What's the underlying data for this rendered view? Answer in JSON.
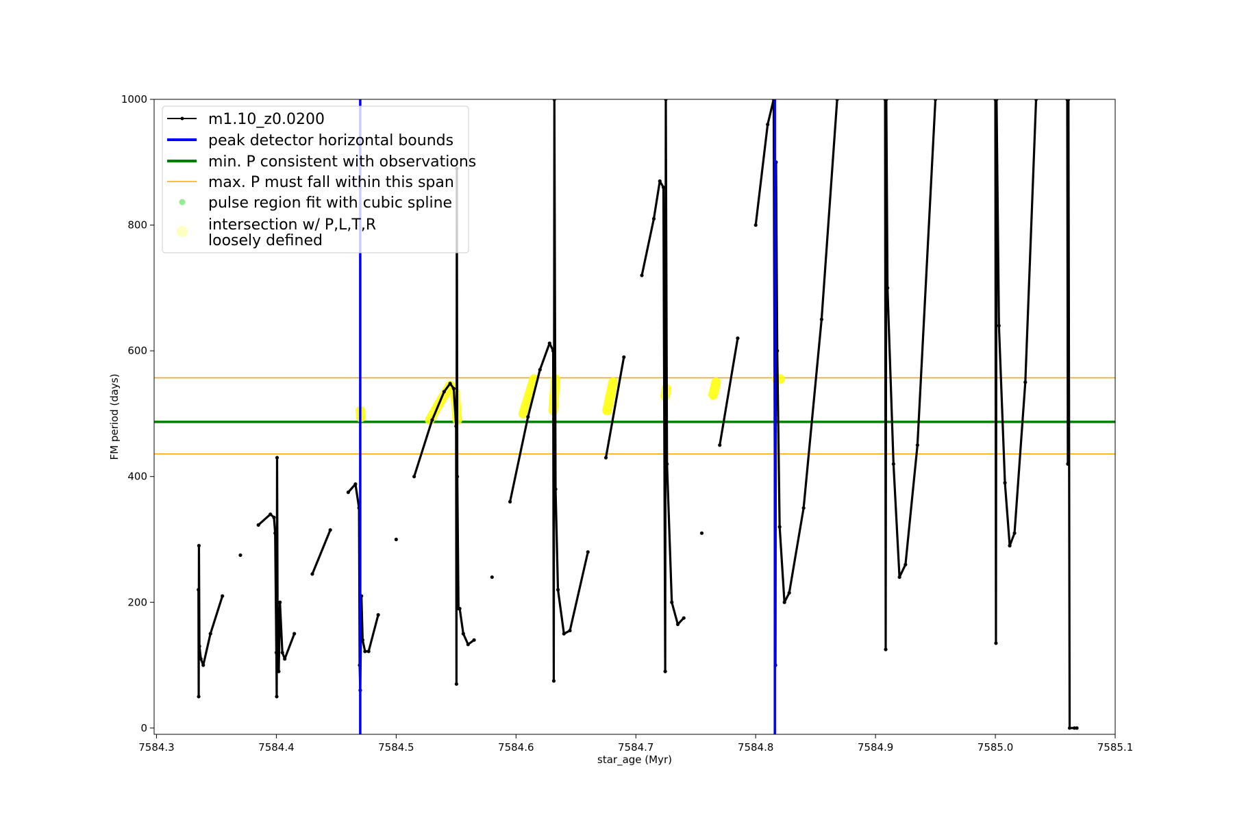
{
  "chart_data": {
    "type": "line",
    "title": "",
    "xlabel": "star_age (Myr)",
    "ylabel": "FM period (days)",
    "xlim": [
      7584.298,
      7585.1
    ],
    "ylim": [
      -10,
      1000
    ],
    "x_ticks": [
      {
        "value": 7584.3,
        "label": "7584.3"
      },
      {
        "value": 7584.4,
        "label": "7584.4"
      },
      {
        "value": 7584.5,
        "label": "7584.5"
      },
      {
        "value": 7584.6,
        "label": "7584.6"
      },
      {
        "value": 7584.7,
        "label": "7584.7"
      },
      {
        "value": 7584.8,
        "label": "7584.8"
      },
      {
        "value": 7584.9,
        "label": "7584.9"
      },
      {
        "value": 7585.0,
        "label": "7585.0"
      },
      {
        "value": 7585.1,
        "label": "7585.1"
      }
    ],
    "y_ticks": [
      {
        "value": 0,
        "label": "0"
      },
      {
        "value": 200,
        "label": "200"
      },
      {
        "value": 400,
        "label": "400"
      },
      {
        "value": 600,
        "label": "600"
      },
      {
        "value": 800,
        "label": "800"
      },
      {
        "value": 1000,
        "label": "1000"
      }
    ],
    "grid": false,
    "legend_position": "top-left",
    "colors": {
      "track": "#000000",
      "bounds": "#0000ff",
      "min_p": "#008000",
      "max_p": "#ffa500",
      "spline": "#90ee90",
      "intersection": "#ffff00"
    },
    "legend": [
      {
        "label": "m1.10_z0.0200",
        "style": "line-marker",
        "color": "#000000"
      },
      {
        "label": "peak detector horizontal bounds",
        "style": "line",
        "color": "#0000ff"
      },
      {
        "label": "min. P consistent with observations",
        "style": "line",
        "color": "#008000"
      },
      {
        "label": "max. P must fall within this span",
        "style": "thin-line",
        "color": "#ffa500"
      },
      {
        "label": "pulse region fit with cubic spline",
        "style": "dot",
        "color": "#90ee90"
      },
      {
        "label": "intersection w/ P,L,T,R\nloosely defined",
        "style": "big-dot",
        "color": "#ffff00"
      }
    ],
    "reference_lines": {
      "vertical_bounds": [
        7584.47,
        7584.816
      ],
      "min_p": 487,
      "max_p_span": [
        436,
        557
      ]
    },
    "series": [
      {
        "name": "m1.10_z0.0200",
        "points": [
          [
            7584.335,
            220
          ],
          [
            7584.3352,
            50
          ],
          [
            7584.3354,
            290
          ],
          [
            7584.3358,
            130
          ],
          [
            7584.337,
            110
          ],
          [
            7584.339,
            100
          ],
          [
            7584.345,
            150
          ],
          [
            7584.355,
            210
          ],
          [
            7584.37,
            275
          ],
          [
            7584.385,
            323
          ],
          [
            7584.395,
            340
          ],
          [
            7584.398,
            335
          ],
          [
            7584.399,
            310
          ],
          [
            7584.4,
            120
          ],
          [
            7584.4003,
            50
          ],
          [
            7584.4006,
            430
          ],
          [
            7584.401,
            200
          ],
          [
            7584.402,
            90
          ],
          [
            7584.403,
            200
          ],
          [
            7584.405,
            120
          ],
          [
            7584.407,
            110
          ],
          [
            7584.415,
            150
          ],
          [
            7584.43,
            245
          ],
          [
            7584.445,
            315
          ],
          [
            7584.46,
            375
          ],
          [
            7584.466,
            388
          ],
          [
            7584.469,
            350
          ],
          [
            7584.4695,
            100
          ],
          [
            7584.47,
            60
          ],
          [
            7584.471,
            210
          ],
          [
            7584.472,
            140
          ],
          [
            7584.474,
            122
          ],
          [
            7584.477,
            122
          ],
          [
            7584.485,
            180
          ],
          [
            7584.5,
            300
          ],
          [
            7584.515,
            400
          ],
          [
            7584.53,
            490
          ],
          [
            7584.54,
            535
          ],
          [
            7584.545,
            548
          ],
          [
            7584.548,
            540
          ],
          [
            7584.55,
            480
          ],
          [
            7584.5503,
            70
          ],
          [
            7584.5506,
            890
          ],
          [
            7584.551,
            400
          ],
          [
            7584.552,
            190
          ],
          [
            7584.553,
            190
          ],
          [
            7584.556,
            150
          ],
          [
            7584.56,
            133
          ],
          [
            7584.565,
            140
          ],
          [
            7584.58,
            240
          ],
          [
            7584.595,
            360
          ],
          [
            7584.61,
            495
          ],
          [
            7584.62,
            570
          ],
          [
            7584.628,
            612
          ],
          [
            7584.631,
            600
          ],
          [
            7584.6315,
            75
          ],
          [
            7584.632,
            1000
          ],
          [
            7584.633,
            380
          ],
          [
            7584.635,
            220
          ],
          [
            7584.64,
            150
          ],
          [
            7584.645,
            155
          ],
          [
            7584.66,
            280
          ],
          [
            7584.675,
            430
          ],
          [
            7584.69,
            590
          ],
          [
            7584.705,
            720
          ],
          [
            7584.715,
            810
          ],
          [
            7584.72,
            870
          ],
          [
            7584.723,
            860
          ],
          [
            7584.7245,
            90
          ],
          [
            7584.725,
            1000
          ],
          [
            7584.726,
            420
          ],
          [
            7584.73,
            200
          ],
          [
            7584.735,
            165
          ],
          [
            7584.74,
            175
          ],
          [
            7584.755,
            310
          ],
          [
            7584.77,
            450
          ],
          [
            7584.785,
            620
          ],
          [
            7584.8,
            800
          ],
          [
            7584.81,
            960
          ],
          [
            7584.815,
            1000
          ],
          [
            7584.8165,
            100
          ],
          [
            7584.817,
            900
          ],
          [
            7584.818,
            600
          ],
          [
            7584.82,
            320
          ],
          [
            7584.824,
            200
          ],
          [
            7584.828,
            215
          ],
          [
            7584.84,
            350
          ],
          [
            7584.855,
            650
          ],
          [
            7584.868,
            1000
          ],
          [
            7584.908,
            1000
          ],
          [
            7584.9085,
            125
          ],
          [
            7584.909,
            1000
          ],
          [
            7584.91,
            700
          ],
          [
            7584.915,
            420
          ],
          [
            7584.92,
            240
          ],
          [
            7584.925,
            260
          ],
          [
            7584.935,
            450
          ],
          [
            7584.95,
            1000
          ],
          [
            7585.0,
            1000
          ],
          [
            7585.0005,
            135
          ],
          [
            7585.001,
            1000
          ],
          [
            7585.003,
            640
          ],
          [
            7585.008,
            390
          ],
          [
            7585.012,
            290
          ],
          [
            7585.016,
            310
          ],
          [
            7585.025,
            550
          ],
          [
            7585.034,
            1000
          ],
          [
            7585.06,
            1000
          ],
          [
            7585.0605,
            420
          ],
          [
            7585.061,
            1000
          ],
          [
            7585.062,
            0
          ],
          [
            7585.066,
            0
          ],
          [
            7585.068,
            0
          ]
        ]
      },
      {
        "name": "intersection",
        "segments": [
          [
            [
              7584.47,
              505
            ],
            [
              7584.4705,
              494
            ]
          ],
          [
            [
              7584.528,
              490
            ],
            [
              7584.537,
              520
            ],
            [
              7584.545,
              545
            ],
            [
              7584.549,
              535
            ],
            [
              7584.551,
              490
            ]
          ],
          [
            [
              7584.606,
              500
            ],
            [
              7584.611,
              530
            ],
            [
              7584.615,
              555
            ]
          ],
          [
            [
              7584.631,
              505
            ],
            [
              7584.633,
              555
            ]
          ],
          [
            [
              7584.676,
              505
            ],
            [
              7584.681,
              550
            ]
          ],
          [
            [
              7584.7245,
              528
            ],
            [
              7584.7255,
              540
            ]
          ],
          [
            [
              7584.7645,
              530
            ],
            [
              7584.767,
              550
            ]
          ],
          [
            [
              7584.8175,
              555
            ],
            [
              7584.8205,
              555
            ]
          ]
        ]
      }
    ]
  }
}
